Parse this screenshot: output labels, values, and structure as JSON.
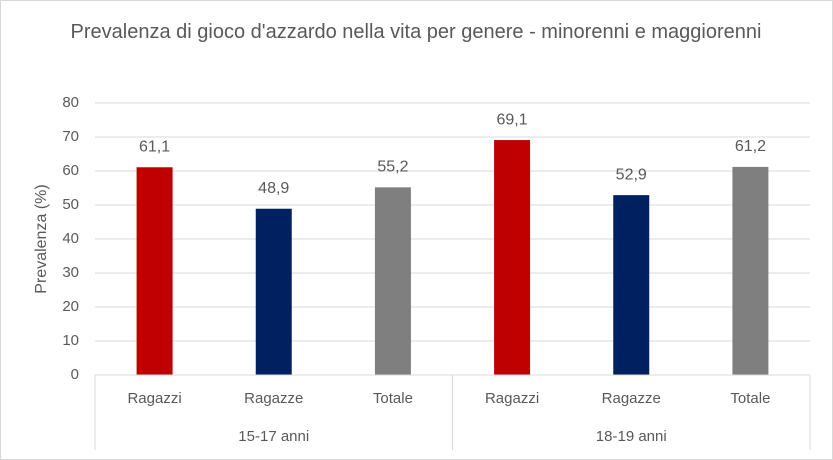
{
  "chart_data": {
    "type": "bar",
    "title": "Prevalenza di gioco d'azzardo nella vita per genere - minorenni e maggiorenni",
    "y_label": "Prevalenza (%)",
    "colors": [
      "#c00000",
      "#002060",
      "#7f7f7f"
    ],
    "groups": [
      {
        "name": "15-17 anni",
        "categories": [
          "Ragazzi",
          "Ragazze",
          "Totale"
        ],
        "values": [
          61.1,
          48.9,
          55.2
        ],
        "value_labels": [
          "61,1",
          "48,9",
          "55,2"
        ]
      },
      {
        "name": "18-19 anni",
        "categories": [
          "Ragazzi",
          "Ragazze",
          "Totale"
        ],
        "values": [
          69.1,
          52.9,
          61.2
        ],
        "value_labels": [
          "69,1",
          "52,9",
          "61,2"
        ]
      }
    ],
    "ylim": [
      0,
      80
    ],
    "yticks": [
      0,
      10,
      20,
      30,
      40,
      50,
      60,
      70,
      80
    ],
    "grid": true
  }
}
